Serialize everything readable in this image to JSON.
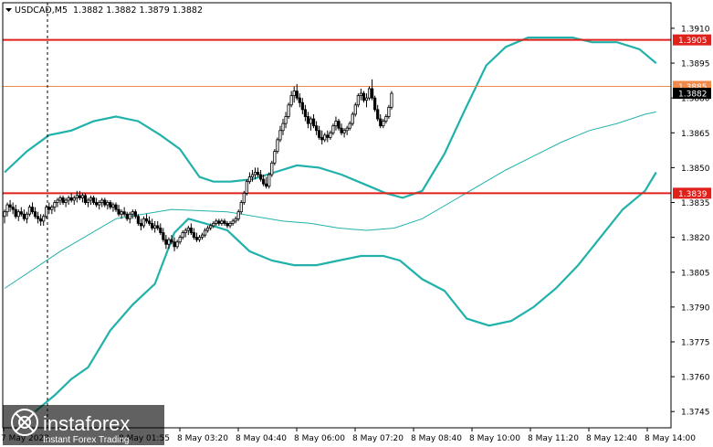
{
  "header": {
    "symbol": "USDCAD,M5",
    "ohlc": "1.3882 1.3882 1.3879 1.3882"
  },
  "brand": {
    "name": "instaforex",
    "tagline": "Instant Forex Trading"
  },
  "colors": {
    "band": "#20b2aa",
    "level": "#e0201b",
    "level_thin": "#f08a4b",
    "candle": "#000000",
    "price_tag": "#000000",
    "grid": "#000000"
  },
  "chart_data": {
    "type": "candlestick",
    "ylim": [
      1.3738,
      1.3921
    ],
    "y_ticks": [
      "1.3910",
      "1.3895",
      "1.3880",
      "1.3865",
      "1.3850",
      "1.3835",
      "1.3820",
      "1.3805",
      "1.3790",
      "1.3775",
      "1.3760",
      "1.3745"
    ],
    "x_ticks": [
      "7 May 2023",
      "8 May 01:55",
      "8 May 03:20",
      "8 May 04:40",
      "8 May 06:00",
      "8 May 07:20",
      "8 May 08:40",
      "8 May 10:00",
      "8 May 11:20",
      "8 May 12:40",
      "8 May 14:00"
    ],
    "horizontal_levels": [
      {
        "value": 1.3905,
        "label": "1.3905",
        "style": "red"
      },
      {
        "value": 1.3885,
        "label": "1.3885",
        "style": "orange"
      },
      {
        "value": 1.3839,
        "label": "1.3839",
        "style": "red"
      }
    ],
    "current_price": {
      "value": 1.3882,
      "label": "1.3882"
    },
    "series": [
      {
        "name": "upper band",
        "points": [
          [
            0,
            1.3848
          ],
          [
            8,
            1.3857
          ],
          [
            16,
            1.3864
          ],
          [
            24,
            1.3866
          ],
          [
            32,
            1.387
          ],
          [
            40,
            1.3872
          ],
          [
            48,
            1.387
          ],
          [
            56,
            1.3864
          ],
          [
            63,
            1.3858
          ],
          [
            70,
            1.3846
          ],
          [
            75,
            1.3844
          ],
          [
            81,
            1.3844
          ],
          [
            89,
            1.3845
          ],
          [
            97,
            1.3848
          ],
          [
            105,
            1.3851
          ],
          [
            113,
            1.385
          ],
          [
            121,
            1.3847
          ],
          [
            129,
            1.3843
          ],
          [
            137,
            1.3839
          ],
          [
            143,
            1.3837
          ],
          [
            150,
            1.384
          ],
          [
            158,
            1.3856
          ],
          [
            165,
            1.3874
          ],
          [
            173,
            1.3894
          ],
          [
            180,
            1.3902
          ],
          [
            188,
            1.3906
          ],
          [
            196,
            1.3906
          ],
          [
            204,
            1.3906
          ],
          [
            211,
            1.3904
          ],
          [
            220,
            1.3904
          ],
          [
            228,
            1.3901
          ],
          [
            234,
            1.3895
          ]
        ]
      },
      {
        "name": "middle band",
        "points": [
          [
            0,
            1.3798
          ],
          [
            20,
            1.3814
          ],
          [
            40,
            1.3828
          ],
          [
            60,
            1.3832
          ],
          [
            80,
            1.3831
          ],
          [
            100,
            1.3827
          ],
          [
            110,
            1.3826
          ],
          [
            120,
            1.3824
          ],
          [
            130,
            1.3823
          ],
          [
            140,
            1.3824
          ],
          [
            150,
            1.3828
          ],
          [
            160,
            1.3835
          ],
          [
            170,
            1.3842
          ],
          [
            180,
            1.3849
          ],
          [
            190,
            1.3855
          ],
          [
            200,
            1.3861
          ],
          [
            210,
            1.3866
          ],
          [
            220,
            1.3869
          ],
          [
            230,
            1.3873
          ],
          [
            234,
            1.3874
          ]
        ]
      },
      {
        "name": "lower band",
        "points": [
          [
            11,
            1.3745
          ],
          [
            18,
            1.3752
          ],
          [
            24,
            1.3759
          ],
          [
            30,
            1.3764
          ],
          [
            38,
            1.378
          ],
          [
            46,
            1.3791
          ],
          [
            54,
            1.38
          ],
          [
            61,
            1.3822
          ],
          [
            66,
            1.3828
          ],
          [
            72,
            1.3826
          ],
          [
            80,
            1.3823
          ],
          [
            88,
            1.3814
          ],
          [
            96,
            1.381
          ],
          [
            104,
            1.3808
          ],
          [
            112,
            1.3808
          ],
          [
            120,
            1.381
          ],
          [
            128,
            1.3812
          ],
          [
            136,
            1.3812
          ],
          [
            142,
            1.381
          ],
          [
            150,
            1.3802
          ],
          [
            158,
            1.3797
          ],
          [
            166,
            1.3785
          ],
          [
            174,
            1.3782
          ],
          [
            182,
            1.3784
          ],
          [
            190,
            1.379
          ],
          [
            198,
            1.3798
          ],
          [
            206,
            1.3808
          ],
          [
            214,
            1.382
          ],
          [
            222,
            1.3832
          ],
          [
            230,
            1.384
          ],
          [
            234,
            1.3848
          ]
        ]
      }
    ],
    "candles": [
      [
        1.3829,
        1.3832,
        1.3826,
        1.3831
      ],
      [
        1.3831,
        1.3835,
        1.3829,
        1.3834
      ],
      [
        1.3834,
        1.3836,
        1.3831,
        1.3833
      ],
      [
        1.3833,
        1.3835,
        1.383,
        1.3832
      ],
      [
        1.3832,
        1.3834,
        1.3828,
        1.3829
      ],
      [
        1.3829,
        1.3832,
        1.3827,
        1.3831
      ],
      [
        1.3831,
        1.3833,
        1.3829,
        1.383
      ],
      [
        1.383,
        1.3832,
        1.3827,
        1.3828
      ],
      [
        1.3828,
        1.3831,
        1.3826,
        1.383
      ],
      [
        1.383,
        1.3834,
        1.3829,
        1.3833
      ],
      [
        1.3833,
        1.3835,
        1.383,
        1.3831
      ],
      [
        1.3831,
        1.3833,
        1.3828,
        1.3829
      ],
      [
        1.3829,
        1.3831,
        1.3826,
        1.3828
      ],
      [
        1.3828,
        1.383,
        1.3825,
        1.3827
      ],
      [
        1.3827,
        1.383,
        1.3825,
        1.3829
      ],
      [
        1.3829,
        1.3834,
        1.3828,
        1.3833
      ],
      [
        1.3833,
        1.3835,
        1.383,
        1.3832
      ],
      [
        1.3832,
        1.3834,
        1.383,
        1.3833
      ],
      [
        1.3833,
        1.3836,
        1.3831,
        1.3835
      ],
      [
        1.3835,
        1.3837,
        1.3833,
        1.3836
      ],
      [
        1.3836,
        1.3838,
        1.3834,
        1.3837
      ],
      [
        1.3837,
        1.3838,
        1.3834,
        1.3835
      ],
      [
        1.3835,
        1.3837,
        1.3833,
        1.3836
      ],
      [
        1.3836,
        1.3838,
        1.3834,
        1.3837
      ],
      [
        1.3837,
        1.3839,
        1.3835,
        1.3836
      ],
      [
        1.3836,
        1.3838,
        1.3834,
        1.3837
      ],
      [
        1.3837,
        1.384,
        1.3835,
        1.3838
      ],
      [
        1.3838,
        1.384,
        1.3836,
        1.3837
      ],
      [
        1.3837,
        1.3839,
        1.3835,
        1.3838
      ],
      [
        1.3838,
        1.3839,
        1.3834,
        1.3835
      ],
      [
        1.3835,
        1.3837,
        1.3833,
        1.3836
      ],
      [
        1.3836,
        1.3838,
        1.3834,
        1.3837
      ],
      [
        1.3837,
        1.3838,
        1.3834,
        1.3835
      ],
      [
        1.3835,
        1.3837,
        1.3833,
        1.3834
      ],
      [
        1.3834,
        1.3836,
        1.3832,
        1.3835
      ],
      [
        1.3835,
        1.3837,
        1.3833,
        1.3836
      ],
      [
        1.3836,
        1.3837,
        1.3833,
        1.3834
      ],
      [
        1.3834,
        1.3836,
        1.3832,
        1.3835
      ],
      [
        1.3835,
        1.3836,
        1.3832,
        1.3833
      ],
      [
        1.3833,
        1.3835,
        1.3831,
        1.3834
      ],
      [
        1.3834,
        1.3835,
        1.3831,
        1.3832
      ],
      [
        1.3832,
        1.3834,
        1.3829,
        1.383
      ],
      [
        1.383,
        1.3832,
        1.3828,
        1.3831
      ],
      [
        1.3831,
        1.3833,
        1.3829,
        1.383
      ],
      [
        1.383,
        1.3831,
        1.3827,
        1.3828
      ],
      [
        1.3828,
        1.3831,
        1.3826,
        1.383
      ],
      [
        1.383,
        1.3832,
        1.3828,
        1.3831
      ],
      [
        1.3831,
        1.3832,
        1.3828,
        1.3829
      ],
      [
        1.3829,
        1.383,
        1.3825,
        1.3826
      ],
      [
        1.3826,
        1.3828,
        1.3823,
        1.3825
      ],
      [
        1.3825,
        1.3829,
        1.3824,
        1.3828
      ],
      [
        1.3828,
        1.383,
        1.3826,
        1.3827
      ],
      [
        1.3827,
        1.3829,
        1.3825,
        1.3826
      ],
      [
        1.3826,
        1.3828,
        1.3823,
        1.3824
      ],
      [
        1.3824,
        1.3827,
        1.3822,
        1.3825
      ],
      [
        1.3825,
        1.3827,
        1.3823,
        1.3824
      ],
      [
        1.3824,
        1.3826,
        1.3821,
        1.3822
      ],
      [
        1.3822,
        1.3824,
        1.3818,
        1.3819
      ],
      [
        1.3819,
        1.3821,
        1.3815,
        1.3817
      ],
      [
        1.3817,
        1.382,
        1.3815,
        1.3819
      ],
      [
        1.3819,
        1.3821,
        1.3817,
        1.3818
      ],
      [
        1.3818,
        1.382,
        1.3814,
        1.3816
      ],
      [
        1.3816,
        1.3819,
        1.3815,
        1.3818
      ],
      [
        1.3818,
        1.3821,
        1.3817,
        1.382
      ],
      [
        1.382,
        1.3823,
        1.3819,
        1.3822
      ],
      [
        1.3822,
        1.3824,
        1.382,
        1.3823
      ],
      [
        1.3823,
        1.3825,
        1.3821,
        1.3824
      ],
      [
        1.3824,
        1.3826,
        1.3821,
        1.3822
      ],
      [
        1.3822,
        1.3824,
        1.3819,
        1.382
      ],
      [
        1.382,
        1.3822,
        1.3818,
        1.3819
      ],
      [
        1.3819,
        1.3821,
        1.3818,
        1.382
      ],
      [
        1.382,
        1.3822,
        1.3819,
        1.3821
      ],
      [
        1.3821,
        1.3824,
        1.382,
        1.3823
      ],
      [
        1.3823,
        1.3825,
        1.3822,
        1.3824
      ],
      [
        1.3824,
        1.3826,
        1.3823,
        1.3825
      ],
      [
        1.3825,
        1.3827,
        1.3824,
        1.3826
      ],
      [
        1.3826,
        1.3828,
        1.3825,
        1.3827
      ],
      [
        1.3827,
        1.3828,
        1.3825,
        1.3826
      ],
      [
        1.3826,
        1.3828,
        1.3825,
        1.3827
      ],
      [
        1.3827,
        1.3828,
        1.3825,
        1.3826
      ],
      [
        1.3826,
        1.3827,
        1.3824,
        1.3825
      ],
      [
        1.3825,
        1.3827,
        1.3824,
        1.3826
      ],
      [
        1.3826,
        1.3828,
        1.3825,
        1.3827
      ],
      [
        1.3827,
        1.3829,
        1.3826,
        1.3828
      ],
      [
        1.3828,
        1.3832,
        1.3827,
        1.3831
      ],
      [
        1.3831,
        1.3836,
        1.383,
        1.3835
      ],
      [
        1.3835,
        1.384,
        1.3834,
        1.3839
      ],
      [
        1.3839,
        1.3845,
        1.3838,
        1.3844
      ],
      [
        1.3844,
        1.3848,
        1.3843,
        1.3846
      ],
      [
        1.3846,
        1.3849,
        1.3844,
        1.3847
      ],
      [
        1.3847,
        1.385,
        1.3845,
        1.3848
      ],
      [
        1.3848,
        1.385,
        1.3846,
        1.3847
      ],
      [
        1.3847,
        1.3849,
        1.3844,
        1.3845
      ],
      [
        1.3845,
        1.3847,
        1.3842,
        1.3843
      ],
      [
        1.3843,
        1.3846,
        1.3841,
        1.3842
      ],
      [
        1.3842,
        1.3848,
        1.3841,
        1.3847
      ],
      [
        1.3847,
        1.3853,
        1.3846,
        1.3852
      ],
      [
        1.3852,
        1.3858,
        1.3851,
        1.3857
      ],
      [
        1.3857,
        1.3863,
        1.3856,
        1.3862
      ],
      [
        1.3862,
        1.3868,
        1.3861,
        1.3866
      ],
      [
        1.3866,
        1.3871,
        1.3864,
        1.3869
      ],
      [
        1.3869,
        1.3874,
        1.3867,
        1.3872
      ],
      [
        1.3872,
        1.3878,
        1.3871,
        1.3877
      ],
      [
        1.3877,
        1.3883,
        1.3876,
        1.3881
      ],
      [
        1.3881,
        1.3885,
        1.3878,
        1.3883
      ],
      [
        1.3883,
        1.3886,
        1.3879,
        1.388
      ],
      [
        1.388,
        1.3882,
        1.3876,
        1.3878
      ],
      [
        1.3878,
        1.388,
        1.3873,
        1.3875
      ],
      [
        1.3875,
        1.3877,
        1.387,
        1.3872
      ],
      [
        1.3872,
        1.3874,
        1.3867,
        1.3869
      ],
      [
        1.3869,
        1.3872,
        1.3866,
        1.3871
      ],
      [
        1.3871,
        1.3873,
        1.3867,
        1.3868
      ],
      [
        1.3868,
        1.387,
        1.3864,
        1.3866
      ],
      [
        1.3866,
        1.3868,
        1.3862,
        1.3863
      ],
      [
        1.3863,
        1.3866,
        1.386,
        1.3862
      ],
      [
        1.3862,
        1.3865,
        1.3861,
        1.3864
      ],
      [
        1.3864,
        1.3866,
        1.3861,
        1.3863
      ],
      [
        1.3863,
        1.3866,
        1.3862,
        1.3865
      ],
      [
        1.3865,
        1.3869,
        1.3864,
        1.3868
      ],
      [
        1.3868,
        1.3872,
        1.3866,
        1.387
      ],
      [
        1.387,
        1.3871,
        1.3866,
        1.3867
      ],
      [
        1.3867,
        1.3869,
        1.3864,
        1.3865
      ],
      [
        1.3865,
        1.3867,
        1.3863,
        1.3866
      ],
      [
        1.3866,
        1.3868,
        1.3864,
        1.3867
      ],
      [
        1.3867,
        1.387,
        1.3866,
        1.3869
      ],
      [
        1.3869,
        1.3874,
        1.3868,
        1.3873
      ],
      [
        1.3873,
        1.3878,
        1.3872,
        1.3877
      ],
      [
        1.3877,
        1.3882,
        1.3876,
        1.3881
      ],
      [
        1.3881,
        1.3884,
        1.3879,
        1.3882
      ],
      [
        1.3882,
        1.3883,
        1.3878,
        1.3879
      ],
      [
        1.3879,
        1.3882,
        1.3876,
        1.388
      ],
      [
        1.388,
        1.3885,
        1.3879,
        1.3884
      ],
      [
        1.3884,
        1.3888,
        1.3879,
        1.388
      ],
      [
        1.388,
        1.3881,
        1.3874,
        1.3875
      ],
      [
        1.3875,
        1.3877,
        1.387,
        1.3871
      ],
      [
        1.3871,
        1.3873,
        1.3867,
        1.3868
      ],
      [
        1.3868,
        1.3871,
        1.3867,
        1.387
      ],
      [
        1.387,
        1.3873,
        1.3869,
        1.3872
      ],
      [
        1.3872,
        1.3877,
        1.3871,
        1.3876
      ],
      [
        1.3876,
        1.3883,
        1.3875,
        1.3882
      ]
    ]
  }
}
